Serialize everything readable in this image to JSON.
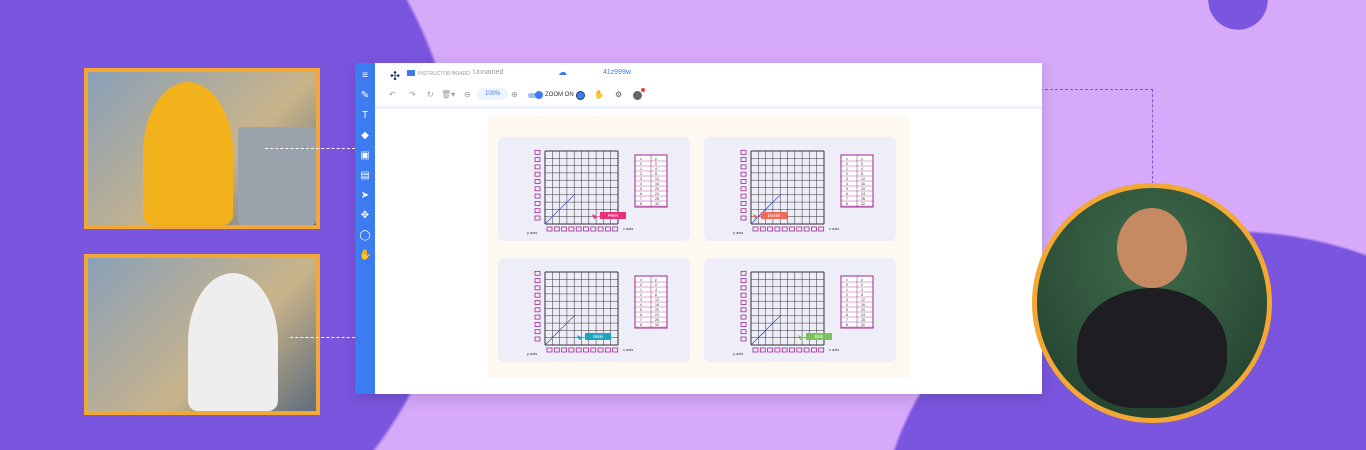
{
  "toolbar": {
    "brand": "INSTRUCTOR BOARD",
    "board_name": "Unnamed",
    "session_code": "41z999w",
    "zoom": "100%",
    "zoom_toggle": "ZOOM ON"
  },
  "colors": {
    "bg": "#d6a9fb",
    "blob": "#7a55de",
    "accent": "#3d7bf0",
    "frame": "#f2a833",
    "graph": "#a2238f"
  },
  "sidebar_icons": [
    "menu-icon",
    "pencil-icon",
    "text-icon",
    "eraser-icon",
    "media-icon",
    "toolbox-icon",
    "pointer-icon",
    "move-icon",
    "lasso-icon",
    "hand-icon"
  ],
  "graph": {
    "x_label": "x axis",
    "y_label": "y axis",
    "table_headers": [
      "x",
      "y"
    ],
    "x": [
      0,
      1,
      2,
      3,
      4,
      5,
      6,
      7,
      8
    ],
    "y": [
      0,
      4,
      8,
      12,
      16,
      20,
      24,
      28,
      32
    ]
  },
  "cards": [
    {
      "student": "Peter",
      "color": "#e8317c"
    },
    {
      "student": "Dustin",
      "color": "#f06a5a"
    },
    {
      "student": "Nikki",
      "color": "#1aa5c0"
    },
    {
      "student": "Bob",
      "color": "#7cc35a"
    }
  ]
}
